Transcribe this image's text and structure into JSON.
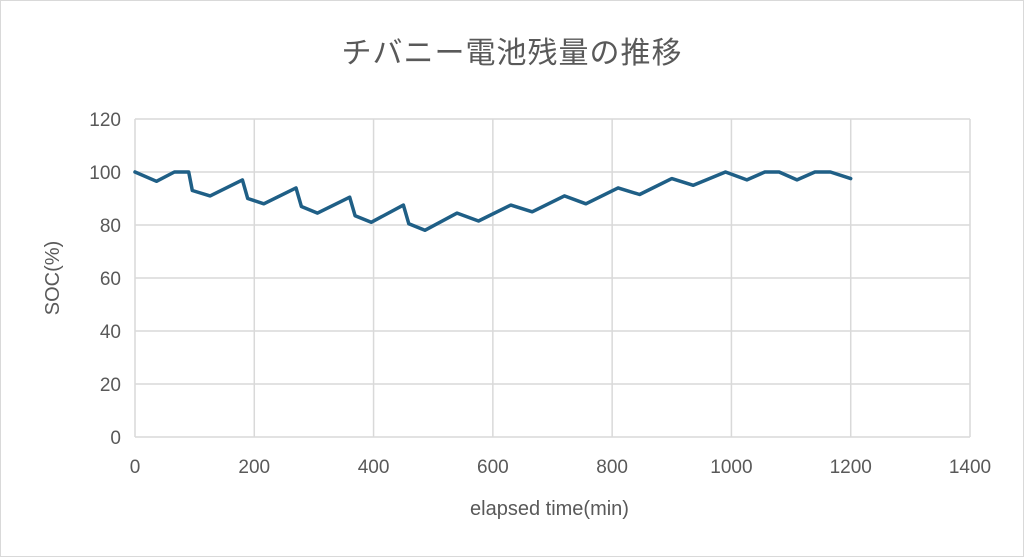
{
  "chart_data": {
    "type": "line",
    "title": "チバニー電池残量の推移",
    "xlabel": "elapsed time(min)",
    "ylabel": "SOC(%)",
    "xlim": [
      0,
      1400
    ],
    "ylim": [
      0,
      120
    ],
    "xticks": [
      0,
      200,
      400,
      600,
      800,
      1000,
      1200,
      1400
    ],
    "yticks": [
      0,
      20,
      40,
      60,
      80,
      100,
      120
    ],
    "grid": true,
    "legend": "none",
    "colors": {
      "line": "#1f5f86",
      "grid": "#d9d9d9",
      "text": "#595959"
    },
    "series": [
      {
        "x": [
          0,
          36,
          66,
          90,
          96,
          126,
          180,
          189,
          216,
          270,
          279,
          306,
          360,
          369,
          396,
          450,
          459,
          486,
          540,
          576,
          630,
          666,
          720,
          756,
          810,
          846,
          900,
          936,
          990,
          1026,
          1056,
          1080,
          1110,
          1140,
          1166,
          1200
        ],
        "y": [
          100,
          96.5,
          100,
          100,
          93,
          91,
          97,
          90,
          88,
          94,
          87,
          84.5,
          90.5,
          83.5,
          81,
          87.5,
          80.5,
          78,
          84.5,
          81.5,
          87.5,
          85,
          91,
          88,
          94,
          91.5,
          97.5,
          95,
          100,
          97,
          100,
          100,
          97,
          100,
          100,
          97.5
        ]
      }
    ]
  }
}
